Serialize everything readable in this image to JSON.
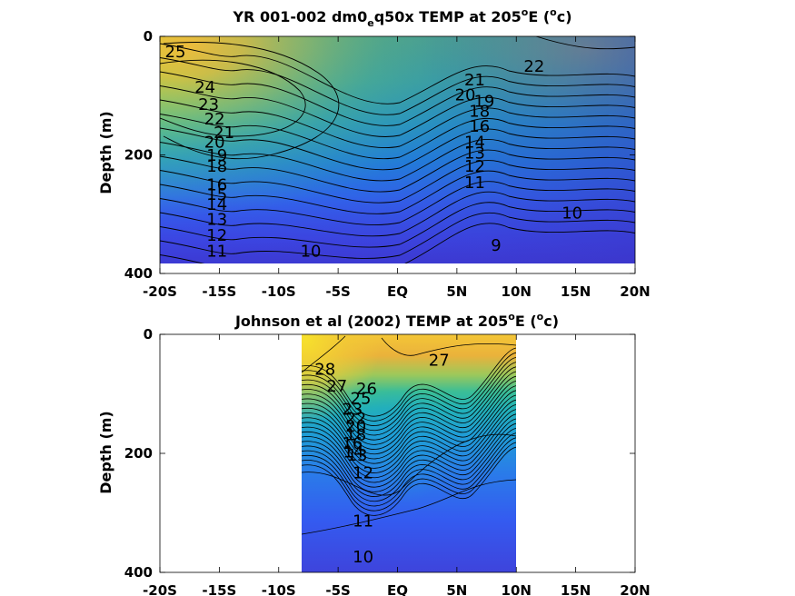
{
  "chart_data": [
    {
      "type": "heatmap",
      "title_main": "YR 001-002 dm0",
      "title_sub": "e",
      "title_rest": "q50x TEMP at 205",
      "title_sup1": "o",
      "title_unit_a": "E (",
      "title_sup2": "o",
      "title_unit_b": "c)",
      "ylabel": "Depth (m)",
      "xlabel": "",
      "x_ticks": [
        "-20S",
        "-15S",
        "-10S",
        "-5S",
        "EQ",
        "5N",
        "10N",
        "15N",
        "20N"
      ],
      "x_tick_values": [
        -20,
        -15,
        -10,
        -5,
        0,
        5,
        10,
        15,
        20
      ],
      "y_ticks": [
        "0",
        "200",
        "400"
      ],
      "y_tick_values": [
        0,
        200,
        400
      ],
      "xlim": [
        -20,
        20
      ],
      "ylim": [
        400,
        0
      ],
      "data_extent": {
        "x": [
          -20,
          20
        ],
        "y": [
          0,
          380
        ]
      },
      "colormap": [
        "#3e26a8",
        "#2f5ff0",
        "#1f9ed8",
        "#2cbcac",
        "#7ac865",
        "#e6b93a",
        "#f7e02a"
      ],
      "color_range": [
        7,
        29
      ],
      "contour_labels": [
        {
          "text": "25",
          "x": -18.7,
          "y": 35
        },
        {
          "text": "24",
          "x": -16.2,
          "y": 95
        },
        {
          "text": "23",
          "x": -15.9,
          "y": 124
        },
        {
          "text": "22",
          "x": -15.4,
          "y": 149
        },
        {
          "text": "21",
          "x": -14.6,
          "y": 172
        },
        {
          "text": "20",
          "x": -15.4,
          "y": 188
        },
        {
          "text": "19",
          "x": -15.2,
          "y": 210
        },
        {
          "text": "18",
          "x": -15.2,
          "y": 228
        },
        {
          "text": "16",
          "x": -15.2,
          "y": 260
        },
        {
          "text": "15",
          "x": -15.2,
          "y": 276
        },
        {
          "text": "14",
          "x": -15.2,
          "y": 293
        },
        {
          "text": "13",
          "x": -15.2,
          "y": 318
        },
        {
          "text": "12",
          "x": -15.2,
          "y": 345
        },
        {
          "text": "11",
          "x": -15.2,
          "y": 372
        },
        {
          "text": "10",
          "x": -7.3,
          "y": 372
        },
        {
          "text": "9",
          "x": 8.3,
          "y": 362
        },
        {
          "text": "10",
          "x": 14.7,
          "y": 307
        },
        {
          "text": "11",
          "x": 6.5,
          "y": 256
        },
        {
          "text": "12",
          "x": 6.5,
          "y": 228
        },
        {
          "text": "13",
          "x": 6.5,
          "y": 206
        },
        {
          "text": "14",
          "x": 6.5,
          "y": 188
        },
        {
          "text": "16",
          "x": 6.9,
          "y": 161
        },
        {
          "text": "18",
          "x": 6.9,
          "y": 136
        },
        {
          "text": "19",
          "x": 7.3,
          "y": 119
        },
        {
          "text": "20",
          "x": 5.7,
          "y": 108
        },
        {
          "text": "21",
          "x": 6.5,
          "y": 83
        },
        {
          "text": "22",
          "x": 11.5,
          "y": 60
        }
      ]
    },
    {
      "type": "heatmap",
      "title_main": "Johnson et al (2002) TEMP at 205",
      "title_sup1": "o",
      "title_unit_a": "E (",
      "title_sup2": "o",
      "title_unit_b": "c)",
      "ylabel": "Depth (m)",
      "xlabel": "",
      "x_ticks": [
        "-20S",
        "-15S",
        "-10S",
        "-5S",
        "EQ",
        "5N",
        "10N",
        "15N",
        "20N"
      ],
      "x_tick_values": [
        -20,
        -15,
        -10,
        -5,
        0,
        5,
        10,
        15,
        20
      ],
      "y_ticks": [
        "0",
        "200",
        "400"
      ],
      "y_tick_values": [
        0,
        200,
        400
      ],
      "xlim": [
        -20,
        20
      ],
      "ylim": [
        400,
        0
      ],
      "data_extent": {
        "x": [
          -8,
          10
        ],
        "y": [
          0,
          400
        ]
      },
      "colormap": [
        "#3e26a8",
        "#2f5ff0",
        "#1f9ed8",
        "#2cbcac",
        "#7ac865",
        "#e6b93a",
        "#f7e02a"
      ],
      "color_range": [
        7,
        29
      ],
      "contour_labels": [
        {
          "text": "28",
          "x": -6.1,
          "y": 68
        },
        {
          "text": "27",
          "x": -5.1,
          "y": 96
        },
        {
          "text": "27",
          "x": 3.5,
          "y": 53
        },
        {
          "text": "26",
          "x": -2.6,
          "y": 101
        },
        {
          "text": "25",
          "x": -3.1,
          "y": 117
        },
        {
          "text": "23",
          "x": -3.8,
          "y": 135
        },
        {
          "text": "22",
          "x": -3.5,
          "y": 150
        },
        {
          "text": "20",
          "x": -3.5,
          "y": 163
        },
        {
          "text": "18",
          "x": -3.5,
          "y": 178
        },
        {
          "text": "16",
          "x": -3.8,
          "y": 192
        },
        {
          "text": "14",
          "x": -3.7,
          "y": 207
        },
        {
          "text": "13",
          "x": -3.4,
          "y": 212
        },
        {
          "text": "12",
          "x": -2.9,
          "y": 242
        },
        {
          "text": "11",
          "x": -2.9,
          "y": 323
        },
        {
          "text": "10",
          "x": -2.9,
          "y": 383
        }
      ]
    }
  ]
}
